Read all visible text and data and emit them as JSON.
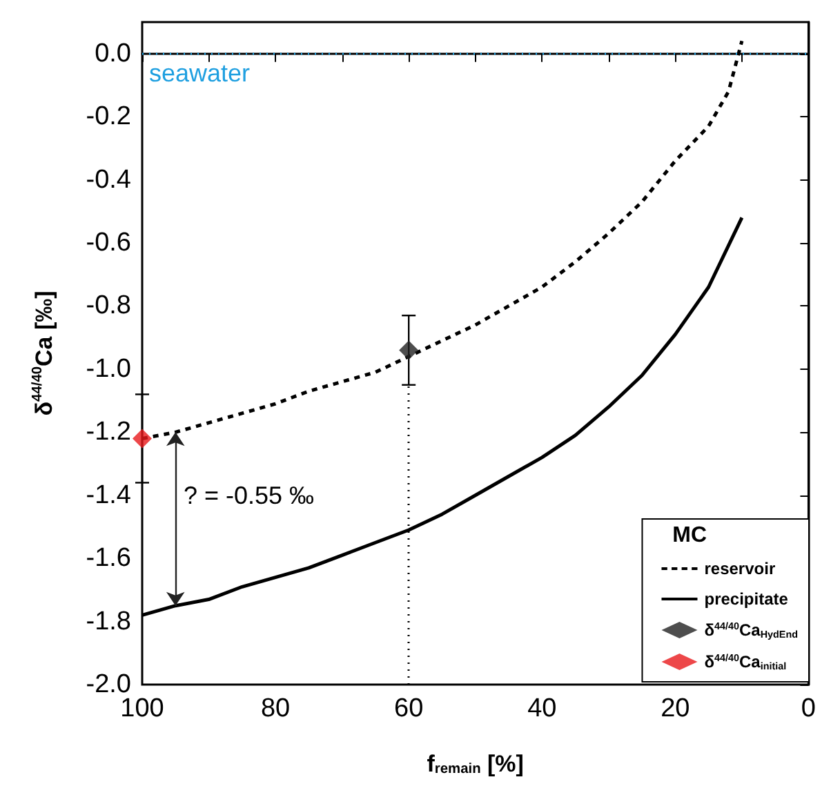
{
  "chart_data": {
    "type": "line",
    "xlabel": "f$_{remain}$ [%]",
    "ylabel": "δ$^{44/40}$Ca [‰]",
    "legend_title": "MC",
    "xlim": [
      100,
      0
    ],
    "xticks": [
      100,
      {
        "value": 90,
        "label": null
      },
      80,
      {
        "value": 70,
        "label": null
      },
      60,
      {
        "value": 50,
        "label": null
      },
      40,
      {
        "value": 30,
        "label": null
      },
      20,
      {
        "value": 10,
        "label": null
      },
      0
    ],
    "ylim": [
      -2.0,
      0.1
    ],
    "yticks": [
      {
        "value": -2.0,
        "label": "-2.0"
      },
      -1.8,
      -1.6,
      -1.4,
      -1.2,
      {
        "value": -1.0,
        "label": "-1.0"
      },
      -0.8,
      -0.6,
      -0.4,
      -0.2,
      {
        "value": 0.0,
        "label": "0.0"
      }
    ],
    "grid": false,
    "legend": "bottom right",
    "series": [
      {
        "name": "reservoir",
        "type": "line",
        "line_style": "dashed",
        "marker": "none",
        "color": "#000000",
        "x": [
          100,
          95,
          90,
          85,
          80,
          75,
          70,
          65,
          60,
          55,
          50,
          45,
          40,
          35,
          30,
          25,
          20,
          15,
          12,
          10
        ],
        "values": [
          -1.22,
          -1.2,
          -1.17,
          -1.14,
          -1.11,
          -1.07,
          -1.04,
          -1.01,
          -0.96,
          -0.91,
          -0.86,
          -0.8,
          -0.74,
          -0.66,
          -0.57,
          -0.47,
          -0.34,
          -0.23,
          -0.12,
          0.04
        ]
      },
      {
        "name": "precipitate",
        "type": "line",
        "line_style": "solid",
        "marker": "none",
        "color": "#000000",
        "x": [
          100,
          95,
          90,
          85,
          80,
          75,
          70,
          65,
          60,
          55,
          50,
          45,
          40,
          35,
          30,
          25,
          20,
          15,
          10
        ],
        "values": [
          -1.78,
          -1.75,
          -1.73,
          -1.69,
          -1.66,
          -1.63,
          -1.59,
          -1.55,
          -1.51,
          -1.46,
          -1.4,
          -1.34,
          -1.28,
          -1.21,
          -1.12,
          -1.02,
          -0.89,
          -0.74,
          -0.52
        ]
      },
      {
        "name": "δ$^{44/40}$Ca$_{HydEnd}$",
        "type": "scatter",
        "marker": "diamond",
        "color": "#222222",
        "x": [
          60
        ],
        "values": [
          -0.94
        ],
        "errors": [
          0.11
        ]
      },
      {
        "name": "δ$^{44/40}$Ca$_{initial}$",
        "type": "scatter",
        "marker": "diamond",
        "color": "#e8191c",
        "x": [
          100
        ],
        "values": [
          -1.22
        ],
        "errors": [
          0.14
        ]
      }
    ],
    "ref_lines": [
      {
        "axis": "y",
        "value": 0.0,
        "label": "seawater",
        "color": "#1e9fe0",
        "line_style": "dotted"
      },
      {
        "axis": "x",
        "value": 60,
        "label": null,
        "color": "#000000",
        "line_style": "dotted"
      }
    ],
    "annotations": [
      "? = -0.55 ‰"
    ]
  }
}
